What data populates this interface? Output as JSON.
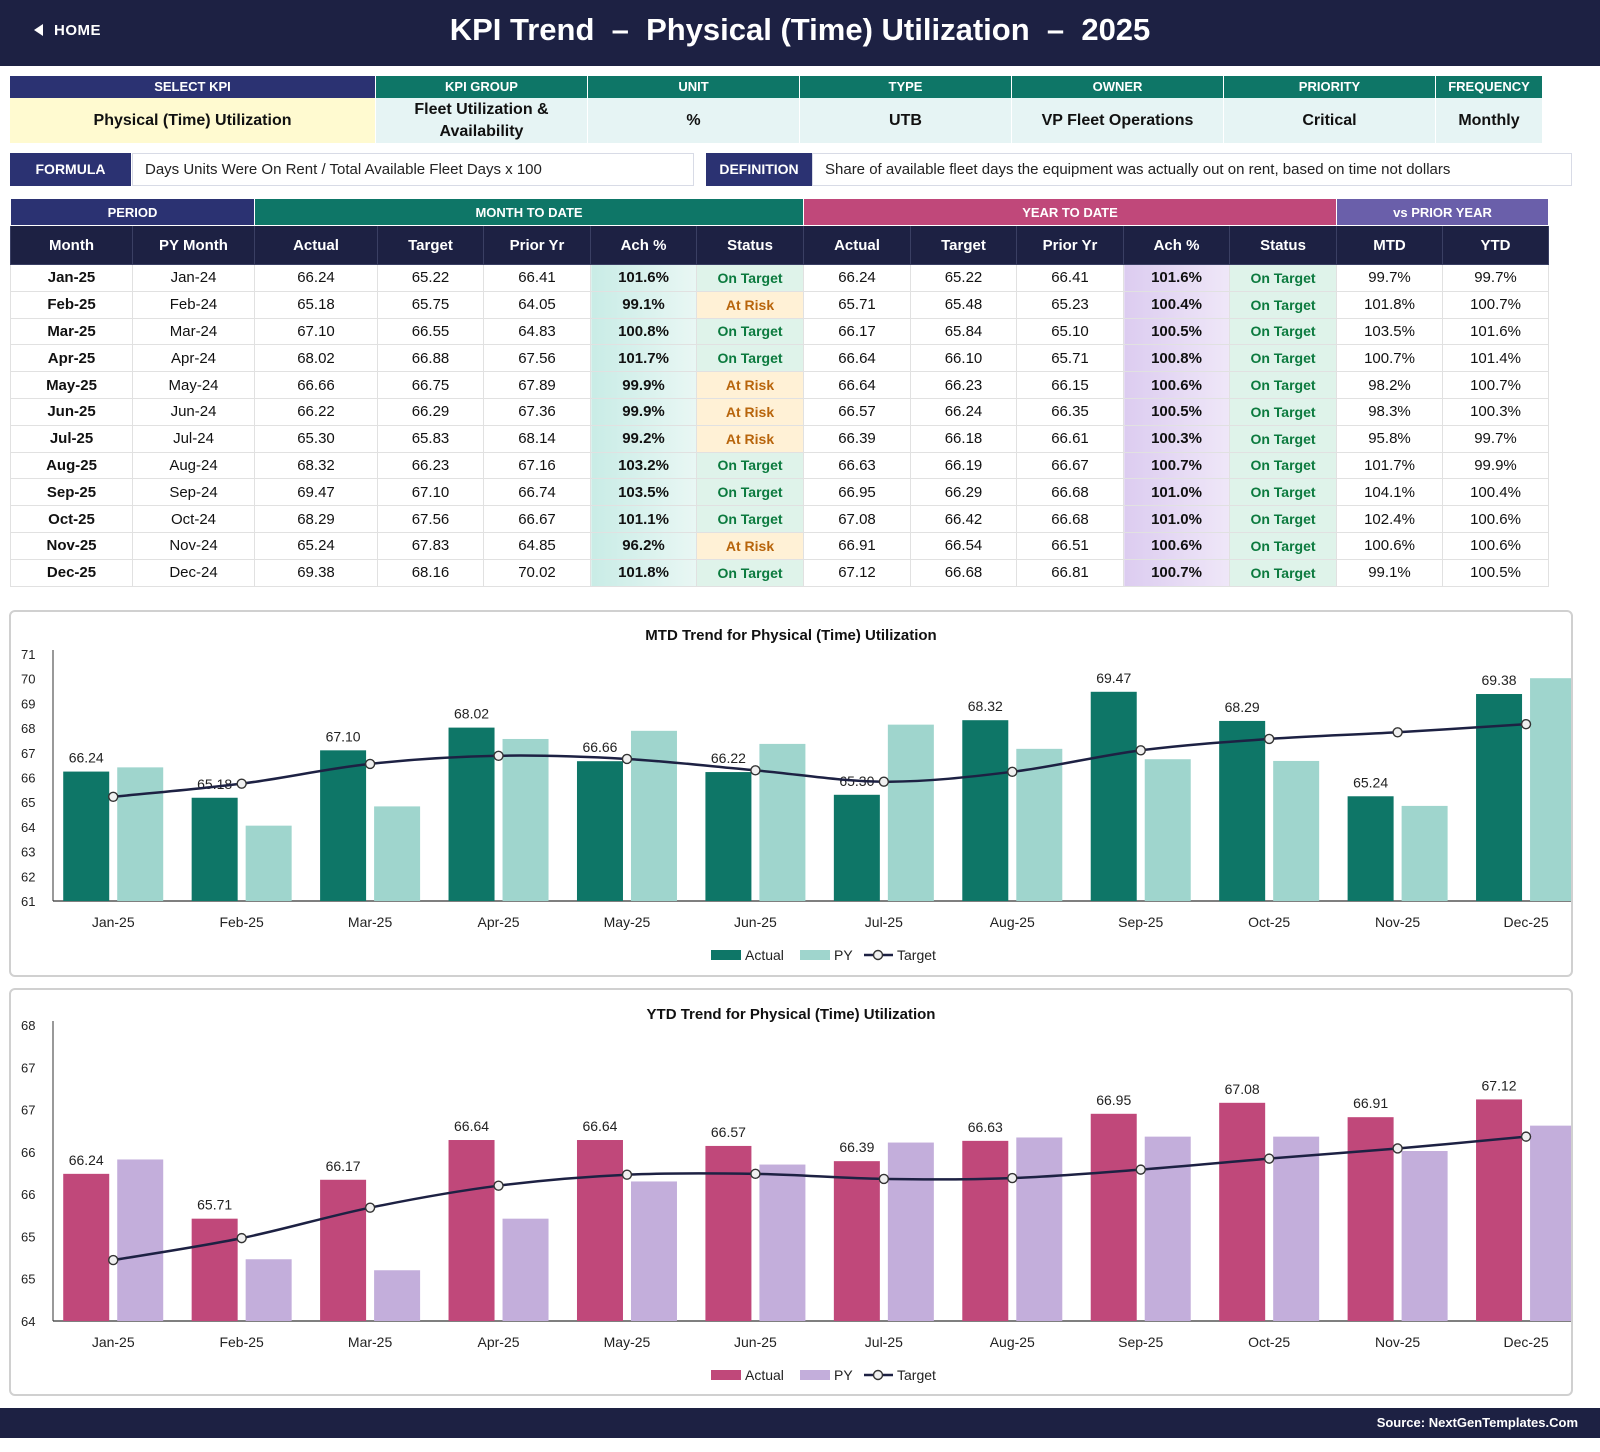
{
  "header": {
    "home_label": "HOME",
    "title": "KPI Trend  –  Physical (Time) Utilization  –  2025"
  },
  "info": [
    {
      "label": "SELECT KPI",
      "value": "Physical (Time) Utilization"
    },
    {
      "label": "KPI GROUP",
      "value": "Fleet Utilization & Availability"
    },
    {
      "label": "UNIT",
      "value": "%"
    },
    {
      "label": "TYPE",
      "value": "UTB"
    },
    {
      "label": "OWNER",
      "value": "VP Fleet Operations"
    },
    {
      "label": "PRIORITY",
      "value": "Critical"
    },
    {
      "label": "FREQUENCY",
      "value": "Monthly"
    }
  ],
  "formula": {
    "label": "FORMULA",
    "text": "Days Units Were On Rent / Total Available Fleet Days x 100",
    "def_label": "DEFINITION",
    "def_text": "Share of available fleet days the equipment was actually out on rent, based on time not dollars"
  },
  "table": {
    "groups": [
      "PERIOD",
      "MONTH TO DATE",
      "YEAR TO DATE",
      "vs PRIOR YEAR"
    ],
    "columns": [
      "Month",
      "PY Month",
      "Actual",
      "Target",
      "Prior Yr",
      "Ach %",
      "Status",
      "Actual",
      "Target",
      "Prior Yr",
      "Ach %",
      "Status",
      "MTD",
      "YTD"
    ],
    "rows": [
      [
        "Jan-25",
        "Jan-24",
        "66.24",
        "65.22",
        "66.41",
        "101.6%",
        "On Target",
        "66.24",
        "65.22",
        "66.41",
        "101.6%",
        "On Target",
        "99.7%",
        "99.7%"
      ],
      [
        "Feb-25",
        "Feb-24",
        "65.18",
        "65.75",
        "64.05",
        "99.1%",
        "At Risk",
        "65.71",
        "65.48",
        "65.23",
        "100.4%",
        "On Target",
        "101.8%",
        "100.7%"
      ],
      [
        "Mar-25",
        "Mar-24",
        "67.10",
        "66.55",
        "64.83",
        "100.8%",
        "On Target",
        "66.17",
        "65.84",
        "65.10",
        "100.5%",
        "On Target",
        "103.5%",
        "101.6%"
      ],
      [
        "Apr-25",
        "Apr-24",
        "68.02",
        "66.88",
        "67.56",
        "101.7%",
        "On Target",
        "66.64",
        "66.10",
        "65.71",
        "100.8%",
        "On Target",
        "100.7%",
        "101.4%"
      ],
      [
        "May-25",
        "May-24",
        "66.66",
        "66.75",
        "67.89",
        "99.9%",
        "At Risk",
        "66.64",
        "66.23",
        "66.15",
        "100.6%",
        "On Target",
        "98.2%",
        "100.7%"
      ],
      [
        "Jun-25",
        "Jun-24",
        "66.22",
        "66.29",
        "67.36",
        "99.9%",
        "At Risk",
        "66.57",
        "66.24",
        "66.35",
        "100.5%",
        "On Target",
        "98.3%",
        "100.3%"
      ],
      [
        "Jul-25",
        "Jul-24",
        "65.30",
        "65.83",
        "68.14",
        "99.2%",
        "At Risk",
        "66.39",
        "66.18",
        "66.61",
        "100.3%",
        "On Target",
        "95.8%",
        "99.7%"
      ],
      [
        "Aug-25",
        "Aug-24",
        "68.32",
        "66.23",
        "67.16",
        "103.2%",
        "On Target",
        "66.63",
        "66.19",
        "66.67",
        "100.7%",
        "On Target",
        "101.7%",
        "99.9%"
      ],
      [
        "Sep-25",
        "Sep-24",
        "69.47",
        "67.10",
        "66.74",
        "103.5%",
        "On Target",
        "66.95",
        "66.29",
        "66.68",
        "101.0%",
        "On Target",
        "104.1%",
        "100.4%"
      ],
      [
        "Oct-25",
        "Oct-24",
        "68.29",
        "67.56",
        "66.67",
        "101.1%",
        "On Target",
        "67.08",
        "66.42",
        "66.68",
        "101.0%",
        "On Target",
        "102.4%",
        "100.6%"
      ],
      [
        "Nov-25",
        "Nov-24",
        "65.24",
        "67.83",
        "64.85",
        "96.2%",
        "At Risk",
        "66.91",
        "66.54",
        "66.51",
        "100.6%",
        "On Target",
        "100.6%",
        "100.6%"
      ],
      [
        "Dec-25",
        "Dec-24",
        "69.38",
        "68.16",
        "70.02",
        "101.8%",
        "On Target",
        "67.12",
        "66.68",
        "66.81",
        "100.7%",
        "On Target",
        "99.1%",
        "100.5%"
      ]
    ]
  },
  "colors": {
    "navy": "#1d2143",
    "mtd_actual": "#0e7667",
    "mtd_py": "#9fd5cd",
    "ytd_actual": "#c0487a",
    "ytd_py": "#c3aedb",
    "target_line": "#1d2143"
  },
  "chart_data": [
    {
      "type": "bar",
      "title": "MTD Trend for Physical (Time) Utilization",
      "categories": [
        "Jan-25",
        "Feb-25",
        "Mar-25",
        "Apr-25",
        "May-25",
        "Jun-25",
        "Jul-25",
        "Aug-25",
        "Sep-25",
        "Oct-25",
        "Nov-25",
        "Dec-25"
      ],
      "series": [
        {
          "name": "Actual",
          "kind": "bar",
          "values": [
            66.24,
            65.18,
            67.1,
            68.02,
            66.66,
            66.22,
            65.3,
            68.32,
            69.47,
            68.29,
            65.24,
            69.38
          ]
        },
        {
          "name": "PY",
          "kind": "bar",
          "values": [
            66.41,
            64.05,
            64.83,
            67.56,
            67.89,
            67.36,
            68.14,
            67.16,
            66.74,
            66.67,
            64.85,
            70.02
          ]
        },
        {
          "name": "Target",
          "kind": "line",
          "values": [
            65.22,
            65.75,
            66.55,
            66.88,
            66.75,
            66.29,
            65.83,
            66.23,
            67.1,
            67.56,
            67.83,
            68.16
          ]
        }
      ],
      "data_labels": [
        "66.24",
        "65.18",
        "67.10",
        "68.02",
        "66.66",
        "66.22",
        "65.30",
        "68.32",
        "69.47",
        "68.29",
        "65.24",
        "69.38"
      ],
      "yticks": [
        "61",
        "62",
        "63",
        "64",
        "65",
        "66",
        "67",
        "68",
        "69",
        "70",
        "71"
      ],
      "ylim": [
        61,
        71
      ],
      "legend_position": "bottom"
    },
    {
      "type": "bar",
      "title": "YTD Trend for Physical (Time) Utilization",
      "categories": [
        "Jan-25",
        "Feb-25",
        "Mar-25",
        "Apr-25",
        "May-25",
        "Jun-25",
        "Jul-25",
        "Aug-25",
        "Sep-25",
        "Oct-25",
        "Nov-25",
        "Dec-25"
      ],
      "series": [
        {
          "name": "Actual",
          "kind": "bar",
          "values": [
            66.24,
            65.71,
            66.17,
            66.64,
            66.64,
            66.57,
            66.39,
            66.63,
            66.95,
            67.08,
            66.91,
            67.12
          ]
        },
        {
          "name": "PY",
          "kind": "bar",
          "values": [
            66.41,
            65.23,
            65.1,
            65.71,
            66.15,
            66.35,
            66.61,
            66.67,
            66.68,
            66.68,
            66.51,
            66.81
          ]
        },
        {
          "name": "Target",
          "kind": "line",
          "values": [
            65.22,
            65.48,
            65.84,
            66.1,
            66.23,
            66.24,
            66.18,
            66.19,
            66.29,
            66.42,
            66.54,
            66.68
          ]
        }
      ],
      "data_labels": [
        "66.24",
        "65.71",
        "66.17",
        "66.64",
        "66.64",
        "66.57",
        "66.39",
        "66.63",
        "66.95",
        "67.08",
        "66.91",
        "67.12"
      ],
      "yticks": [
        "64",
        "65",
        "65",
        "66",
        "66",
        "67",
        "67",
        "68"
      ],
      "ylim": [
        64.5,
        68
      ],
      "legend_position": "bottom"
    }
  ],
  "footer": {
    "source": "Source: NextGenTemplates.Com"
  }
}
